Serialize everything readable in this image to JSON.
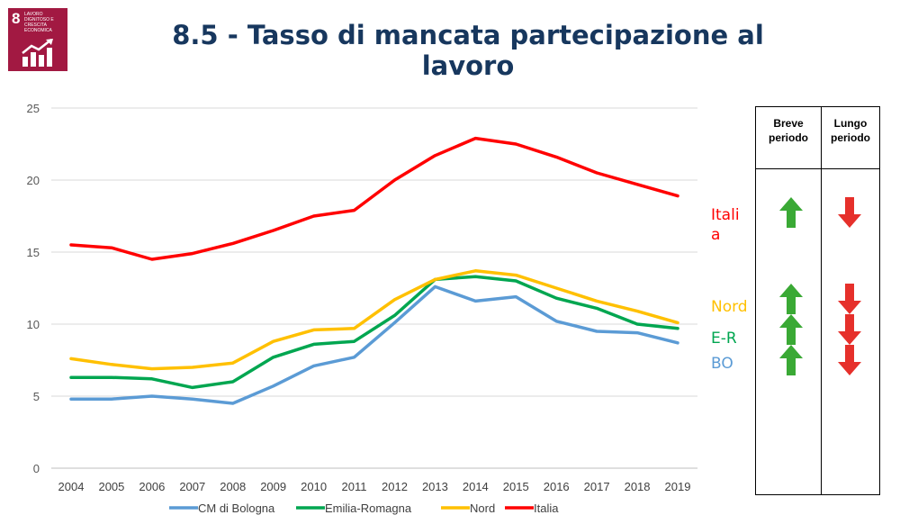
{
  "logo": {
    "number": "8",
    "text": "LAVORO DIGNITOSO E CRESCITA ECONOMICA"
  },
  "title": "8.5 - Tasso di mancata partecipazione al lavoro",
  "colors": {
    "CM di Bologna": "#5b9bd5",
    "Emilia-Romagna": "#00a650",
    "Nord": "#ffc000",
    "Italia": "#ff0000",
    "arrow_up": "#3aa935",
    "arrow_down": "#e6302b"
  },
  "chart_data": {
    "type": "line",
    "categories": [
      "2004",
      "2005",
      "2006",
      "2007",
      "2008",
      "2009",
      "2010",
      "2011",
      "2012",
      "2013",
      "2014",
      "2015",
      "2016",
      "2017",
      "2018",
      "2019"
    ],
    "ylim": [
      0,
      25
    ],
    "yticks": [
      "0",
      "5",
      "10",
      "15",
      "20",
      "25"
    ],
    "grid": true,
    "legend": "bottom",
    "series": [
      {
        "name": "CM di Bologna",
        "values": [
          4.8,
          4.8,
          5.0,
          4.8,
          4.5,
          5.7,
          7.1,
          7.7,
          10.1,
          12.6,
          11.6,
          11.9,
          10.2,
          9.5,
          9.4,
          8.7
        ]
      },
      {
        "name": "Emilia-Romagna",
        "values": [
          6.3,
          6.3,
          6.2,
          5.6,
          6.0,
          7.7,
          8.6,
          8.8,
          10.6,
          13.1,
          13.3,
          13.0,
          11.8,
          11.1,
          10.0,
          9.7
        ]
      },
      {
        "name": "Nord",
        "values": [
          7.6,
          7.2,
          6.9,
          7.0,
          7.3,
          8.8,
          9.6,
          9.7,
          11.7,
          13.1,
          13.7,
          13.4,
          12.5,
          11.6,
          10.9,
          10.1
        ]
      },
      {
        "name": "Italia",
        "values": [
          15.5,
          15.3,
          14.5,
          14.9,
          15.6,
          16.5,
          17.5,
          17.9,
          20.0,
          21.7,
          22.9,
          22.5,
          21.6,
          20.5,
          19.7,
          18.9
        ]
      }
    ]
  },
  "regions": {
    "italia_line1": "Itali",
    "italia_line2": "a",
    "nord": "Nord",
    "er": "E-R",
    "bo": "BO"
  },
  "trend_table": {
    "breve_line1": "Breve",
    "breve_line2": "periodo",
    "lungo_line1": "Lungo",
    "lungo_line2": "periodo",
    "rows": [
      {
        "label": "Italia",
        "breve": "up",
        "lungo": "down"
      },
      {
        "label": "Nord",
        "breve": "up",
        "lungo": "down"
      },
      {
        "label": "E-R",
        "breve": "up",
        "lungo": "down"
      },
      {
        "label": "BO",
        "breve": "up",
        "lungo": "down"
      }
    ]
  }
}
